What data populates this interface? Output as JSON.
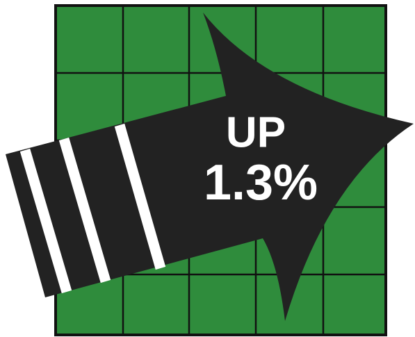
{
  "label": {
    "line1": "UP",
    "line2": "1.3%"
  }
}
